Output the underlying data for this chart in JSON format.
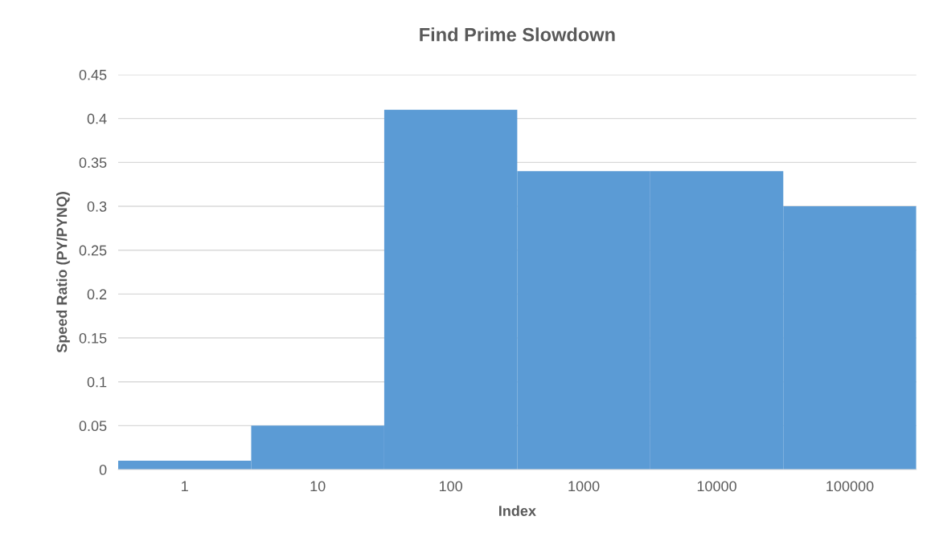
{
  "chart_data": {
    "type": "bar",
    "title": "Find Prime Slowdown",
    "xlabel": "Index",
    "ylabel": "Speed Ratio (PY/PYNQ)",
    "categories": [
      "1",
      "10",
      "100",
      "1000",
      "10000",
      "100000"
    ],
    "values": [
      0.01,
      0.05,
      0.41,
      0.34,
      0.34,
      0.3
    ],
    "color": "#5b9bd5",
    "ylim": [
      0,
      0.45
    ],
    "yticks": [
      {
        "value": 0,
        "label": "0"
      },
      0.05,
      0.1,
      0.15,
      0.2,
      0.25,
      0.3,
      0.35,
      0.4,
      0.45
    ],
    "grid": "y",
    "legend": false
  }
}
